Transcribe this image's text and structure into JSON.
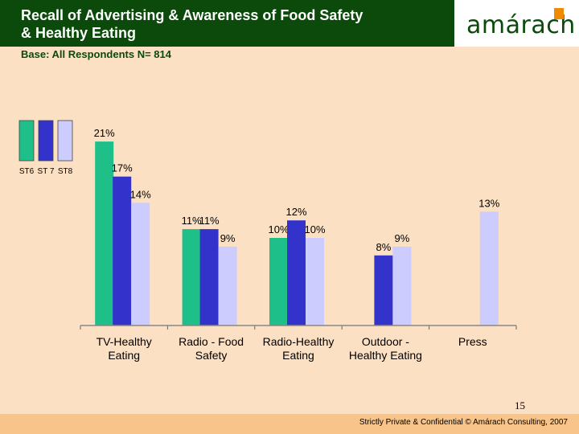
{
  "header": {
    "title_line1": "Recall of Advertising & Awareness of Food Safety",
    "title_line2": "& Healthy Eating",
    "logo_text": "amárach",
    "base": "Base: All Respondents N= 814"
  },
  "chart_data": {
    "type": "bar",
    "title": "Recall of Advertising & Awareness of Food Safety & Healthy Eating",
    "categories": [
      [
        "TV-Healthy",
        "Eating"
      ],
      [
        "Radio - Food",
        "Safety"
      ],
      [
        "Radio-Healthy",
        "Eating"
      ],
      [
        "Outdoor -",
        "Healthy Eating"
      ],
      [
        "Press",
        ""
      ]
    ],
    "series": [
      {
        "name": "ST6",
        "color": "#1fbf8a",
        "values": [
          21,
          11,
          10,
          null,
          null
        ]
      },
      {
        "name": "ST 7",
        "color": "#3333cc",
        "values": [
          17,
          11,
          12,
          8,
          null
        ]
      },
      {
        "name": "ST8",
        "color": "#ccccff",
        "values": [
          14,
          9,
          10,
          9,
          13
        ]
      }
    ],
    "unit": "%",
    "ylim": [
      0,
      24
    ],
    "legend_position": "top-left"
  },
  "footer": {
    "page_number": "15",
    "confidential": "Strictly Private & Confidential © Amárach Consulting, 2007"
  }
}
